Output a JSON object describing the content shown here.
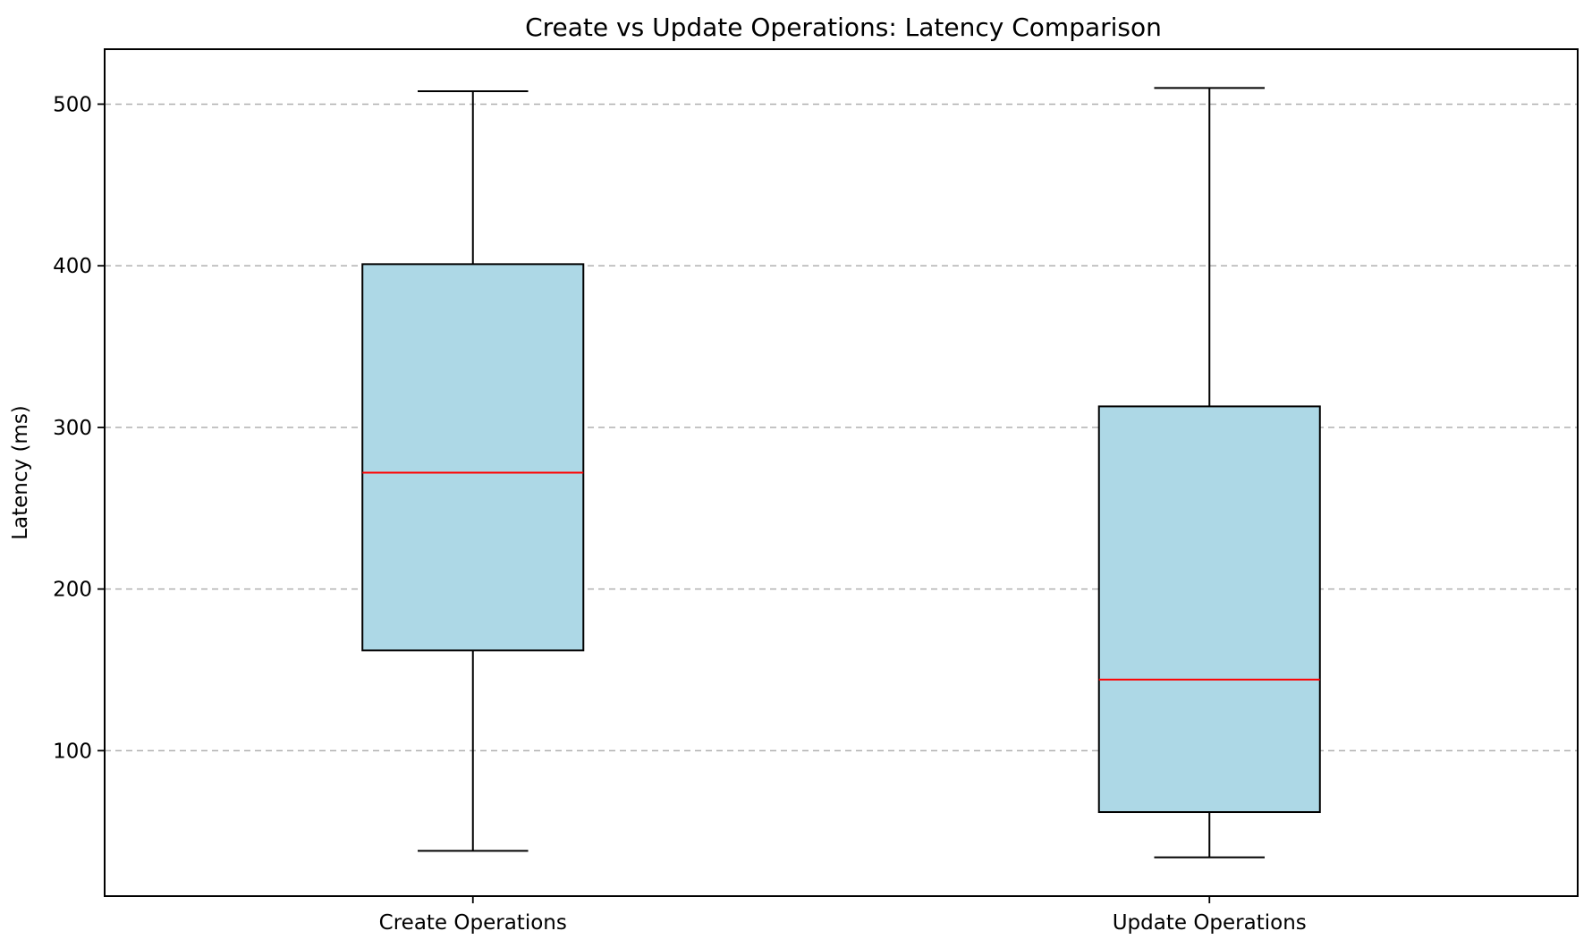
{
  "chart_data": {
    "type": "boxplot",
    "title": "Create vs Update Operations: Latency Comparison",
    "xlabel": "",
    "ylabel": "Latency (ms)",
    "ylim": [
      10,
      534
    ],
    "yticks": [
      100,
      200,
      300,
      400,
      500
    ],
    "categories": [
      "Create Operations",
      "Update Operations"
    ],
    "boxes": [
      {
        "label": "Create Operations",
        "whisker_low": 38,
        "q1": 162,
        "median": 272,
        "q3": 401,
        "whisker_high": 508
      },
      {
        "label": "Update Operations",
        "whisker_low": 34,
        "q1": 62,
        "median": 144,
        "q3": 313,
        "whisker_high": 510
      }
    ],
    "grid": "y-dashed",
    "colors": {
      "box_fill": "#add8e6",
      "box_edge": "#000000",
      "median": "#ff0000",
      "grid": "#b0b0b0"
    }
  }
}
